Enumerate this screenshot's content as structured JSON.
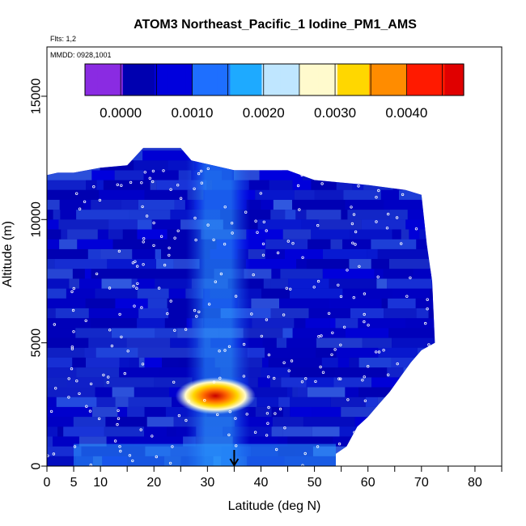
{
  "chart_data": {
    "type": "heatmap",
    "title": "ATOM3 Northeast_Pacific_1 Iodine_PM1_AMS",
    "flights_label": "Flts: 1,2",
    "dates_label": "MMDD: 0928,1001",
    "xlabel": "Latitude (deg N)",
    "ylabel": "Altitude (m)",
    "xlim": [
      0,
      85
    ],
    "ylim": [
      0,
      17000
    ],
    "x_tick_labels": [
      {
        "value": 0,
        "label": "0"
      },
      {
        "value": 5,
        "label": "5"
      },
      {
        "value": 10,
        "label": "10"
      },
      {
        "value": 20,
        "label": "20"
      },
      {
        "value": 30,
        "label": "30"
      },
      {
        "value": 40,
        "label": "40"
      },
      {
        "value": 50,
        "label": "50"
      },
      {
        "value": 60,
        "label": "60"
      },
      {
        "value": 70,
        "label": "70"
      },
      {
        "value": 80,
        "label": "80"
      }
    ],
    "x_minor_ticks": [
      15,
      25,
      35,
      45,
      55,
      65,
      75,
      85
    ],
    "y_tick_labels": [
      {
        "value": 0,
        "label": "0"
      },
      {
        "value": 5000,
        "label": "5000"
      },
      {
        "value": 10000,
        "label": "10000"
      },
      {
        "value": 15000,
        "label": "15000"
      }
    ],
    "colorbar": {
      "range": [
        -0.0005,
        0.0048
      ],
      "tick_labels": [
        {
          "value": 0.0,
          "label": "0.0000"
        },
        {
          "value": 0.001,
          "label": "0.0010"
        },
        {
          "value": 0.002,
          "label": "0.0020"
        },
        {
          "value": 0.003,
          "label": "0.0030"
        },
        {
          "value": 0.004,
          "label": "0.0040"
        }
      ],
      "divisions": [
        -0.0005,
        0.0,
        0.0005,
        0.001,
        0.0015,
        0.002,
        0.0025,
        0.003,
        0.0035,
        0.004,
        0.0045,
        0.0048
      ],
      "colors": [
        "#8a2be2",
        "#0000b0",
        "#0000dd",
        "#1e6fff",
        "#1eaaff",
        "#bfe6ff",
        "#fffacd",
        "#ffd700",
        "#ff8c00",
        "#ff1a00",
        "#e00000",
        "#a51a1a"
      ]
    },
    "arrow_at_latitude": 35,
    "coverage_top_altitude_by_latitude": [
      [
        0,
        11800
      ],
      [
        2,
        11900
      ],
      [
        5,
        11900
      ],
      [
        10,
        12100
      ],
      [
        15,
        12200
      ],
      [
        18,
        12900
      ],
      [
        25,
        12900
      ],
      [
        27,
        12400
      ],
      [
        35,
        12000
      ],
      [
        45,
        12000
      ],
      [
        50,
        11600
      ],
      [
        60,
        11400
      ],
      [
        67,
        11200
      ],
      [
        70,
        11000
      ],
      [
        71,
        9000
      ],
      [
        72,
        7500
      ],
      [
        72.5,
        5000
      ]
    ],
    "coverage_bottom_altitude_by_latitude": [
      [
        0,
        0
      ],
      [
        54,
        0
      ],
      [
        54,
        500
      ],
      [
        56,
        800
      ],
      [
        57,
        1200
      ],
      [
        58,
        1600
      ],
      [
        60,
        2000
      ],
      [
        62,
        2500
      ],
      [
        64,
        3000
      ],
      [
        66,
        3600
      ],
      [
        68,
        4200
      ],
      [
        70,
        4700
      ],
      [
        72.5,
        5000
      ]
    ],
    "features": [
      {
        "name": "iodine maximum",
        "lat_range": [
          24,
          39
        ],
        "alt_range": [
          2100,
          3600
        ],
        "peak_value": 0.0046
      },
      {
        "name": "elevated column",
        "lat_range": [
          26,
          38
        ],
        "alt_range": [
          0,
          13000
        ],
        "value": 0.0012
      },
      {
        "name": "surface layer",
        "lat_range": [
          5,
          54
        ],
        "alt_range": [
          0,
          900
        ],
        "value": 0.0012
      },
      {
        "name": "background",
        "value": 0.0003
      }
    ]
  }
}
